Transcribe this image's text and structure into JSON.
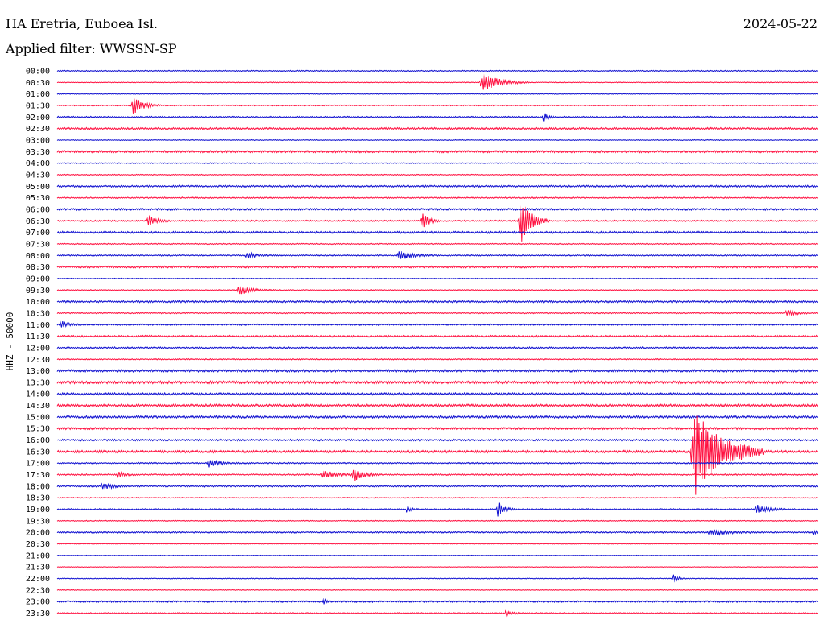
{
  "header": {
    "station": "HA Eretria, Euboea Isl.",
    "date": "2024-05-22",
    "filter": "Applied filter: WWSSN-SP"
  },
  "chart_data": {
    "type": "line",
    "title": "",
    "ylabel": "HHZ - 50000",
    "xlabel": "",
    "grid": false,
    "legend": "none",
    "trace_colors": [
      "#1010d0",
      "#ff1040"
    ],
    "rows": [
      {
        "label": "00:00",
        "noise": 0.7
      },
      {
        "label": "00:30",
        "noise": 0.5,
        "events": [
          {
            "t": 0.56,
            "amp": 12,
            "dur": 0.02
          }
        ]
      },
      {
        "label": "01:00",
        "noise": 0.5
      },
      {
        "label": "01:30",
        "noise": 0.6,
        "events": [
          {
            "t": 0.1,
            "amp": 12,
            "dur": 0.012
          }
        ]
      },
      {
        "label": "02:00",
        "noise": 0.9,
        "events": [
          {
            "t": 0.64,
            "amp": 5,
            "dur": 0.006
          }
        ]
      },
      {
        "label": "02:30",
        "noise": 1.2
      },
      {
        "label": "03:00",
        "noise": 0.5
      },
      {
        "label": "03:30",
        "noise": 1.3
      },
      {
        "label": "04:00",
        "noise": 0.6
      },
      {
        "label": "04:30",
        "noise": 0.6
      },
      {
        "label": "05:00",
        "noise": 1.1
      },
      {
        "label": "05:30",
        "noise": 0.8
      },
      {
        "label": "06:00",
        "noise": 1.2
      },
      {
        "label": "06:30",
        "noise": 0.9,
        "events": [
          {
            "t": 0.12,
            "amp": 7,
            "dur": 0.01
          },
          {
            "t": 0.48,
            "amp": 12,
            "dur": 0.008
          },
          {
            "t": 0.61,
            "amp": 30,
            "dur": 0.012
          }
        ]
      },
      {
        "label": "07:00",
        "noise": 1.3
      },
      {
        "label": "07:30",
        "noise": 0.7
      },
      {
        "label": "08:00",
        "noise": 0.8,
        "events": [
          {
            "t": 0.25,
            "amp": 4,
            "dur": 0.01
          },
          {
            "t": 0.45,
            "amp": 6,
            "dur": 0.015
          }
        ]
      },
      {
        "label": "08:30",
        "noise": 1.2
      },
      {
        "label": "09:00",
        "noise": 0.5
      },
      {
        "label": "09:30",
        "noise": 0.6,
        "events": [
          {
            "t": 0.24,
            "amp": 6,
            "dur": 0.015
          }
        ]
      },
      {
        "label": "10:00",
        "noise": 1.2
      },
      {
        "label": "10:30",
        "noise": 0.8,
        "events": [
          {
            "t": 0.96,
            "amp": 5,
            "dur": 0.01
          }
        ]
      },
      {
        "label": "11:00",
        "noise": 0.9,
        "events": [
          {
            "t": 0.005,
            "amp": 5,
            "dur": 0.008
          }
        ]
      },
      {
        "label": "11:30",
        "noise": 1.1
      },
      {
        "label": "12:00",
        "noise": 1.0
      },
      {
        "label": "12:30",
        "noise": 0.7
      },
      {
        "label": "13:00",
        "noise": 1.4
      },
      {
        "label": "13:30",
        "noise": 1.6
      },
      {
        "label": "14:00",
        "noise": 1.4
      },
      {
        "label": "14:30",
        "noise": 1.5
      },
      {
        "label": "15:00",
        "noise": 1.4
      },
      {
        "label": "15:30",
        "noise": 1.3
      },
      {
        "label": "16:00",
        "noise": 1.1
      },
      {
        "label": "16:30",
        "noise": 1.5,
        "events": [
          {
            "t": 0.84,
            "amp": 55,
            "dur": 0.03
          },
          {
            "t": 0.9,
            "amp": 4,
            "dur": 0.01
          }
        ]
      },
      {
        "label": "17:00",
        "noise": 0.8,
        "events": [
          {
            "t": 0.2,
            "amp": 5,
            "dur": 0.012
          }
        ]
      },
      {
        "label": "17:30",
        "noise": 0.9,
        "events": [
          {
            "t": 0.08,
            "amp": 4,
            "dur": 0.008
          },
          {
            "t": 0.35,
            "amp": 5,
            "dur": 0.015
          },
          {
            "t": 0.39,
            "amp": 8,
            "dur": 0.012
          }
        ]
      },
      {
        "label": "18:00",
        "noise": 1.0,
        "events": [
          {
            "t": 0.06,
            "amp": 4,
            "dur": 0.012
          }
        ]
      },
      {
        "label": "18:30",
        "noise": 0.6
      },
      {
        "label": "19:00",
        "noise": 0.8,
        "events": [
          {
            "t": 0.46,
            "amp": 4,
            "dur": 0.006
          },
          {
            "t": 0.58,
            "amp": 9,
            "dur": 0.008
          },
          {
            "t": 0.92,
            "amp": 7,
            "dur": 0.012
          }
        ]
      },
      {
        "label": "19:30",
        "noise": 0.6
      },
      {
        "label": "20:00",
        "noise": 0.9,
        "events": [
          {
            "t": 0.86,
            "amp": 4,
            "dur": 0.02
          },
          {
            "t": 0.995,
            "amp": 3,
            "dur": 0.01
          }
        ]
      },
      {
        "label": "20:30",
        "noise": 0.4
      },
      {
        "label": "21:00",
        "noise": 0.4
      },
      {
        "label": "21:30",
        "noise": 0.4
      },
      {
        "label": "22:00",
        "noise": 0.5,
        "events": [
          {
            "t": 0.81,
            "amp": 6,
            "dur": 0.006
          }
        ]
      },
      {
        "label": "22:30",
        "noise": 0.5
      },
      {
        "label": "23:00",
        "noise": 1.0,
        "events": [
          {
            "t": 0.35,
            "amp": 4,
            "dur": 0.004
          }
        ]
      },
      {
        "label": "23:30",
        "noise": 0.7,
        "events": [
          {
            "t": 0.59,
            "amp": 3,
            "dur": 0.008
          }
        ]
      }
    ]
  }
}
